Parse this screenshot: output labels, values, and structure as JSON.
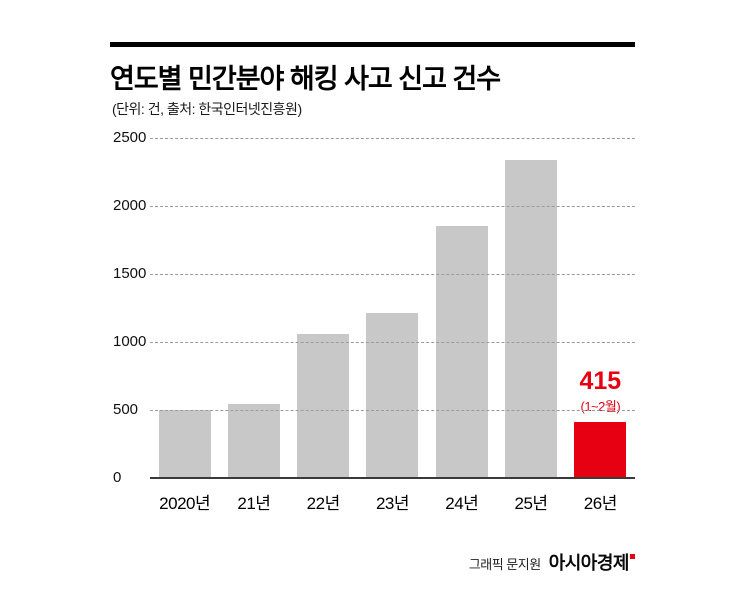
{
  "header": {
    "title": "연도별 민간분야 해킹 사고 신고 건수",
    "subtitle": "(단위: 건, 출처: 한국인터넷진흥원)"
  },
  "footer": {
    "credit": "그래픽 문지원",
    "brand": "아시아경제"
  },
  "colors": {
    "bar": "#c8c8c9",
    "highlight": "#e60012",
    "grid": "#9b9b9b",
    "axis": "#3a3a3a"
  },
  "chart_data": {
    "type": "bar",
    "title": "연도별 민간분야 해킹 사고 신고 건수",
    "subtitle": "(단위: 건, 출처: 한국인터넷진흥원)",
    "categories": [
      "2020년",
      "21년",
      "22년",
      "23년",
      "24년",
      "25년",
      "26년"
    ],
    "values": [
      500,
      545,
      1060,
      1215,
      1850,
      2335,
      415
    ],
    "ylim": [
      0,
      2500
    ],
    "yticks": [
      0,
      500,
      1000,
      1500,
      2000,
      2500
    ],
    "xlabel": "",
    "ylabel": "",
    "grid": "dashed-horizontal",
    "legend": "none",
    "highlight_index": 6,
    "annotation": {
      "index": 6,
      "value_label": "415",
      "sub_label": "(1~2월)"
    }
  }
}
